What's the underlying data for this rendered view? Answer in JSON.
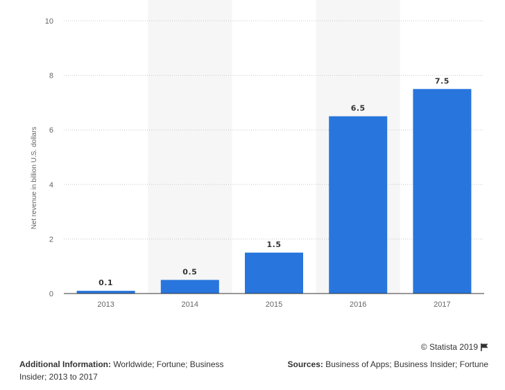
{
  "chart_data": {
    "type": "bar",
    "categories": [
      "2013",
      "2014",
      "2015",
      "2016",
      "2017"
    ],
    "values": [
      0.1,
      0.5,
      1.5,
      6.5,
      7.5
    ],
    "data_labels": [
      "0.1",
      "0.5",
      "1.5",
      "6.5",
      "7.5"
    ],
    "title": "",
    "xlabel": "",
    "ylabel": "Net revenue in billion U.S. dollars",
    "ylim": [
      0,
      10
    ],
    "yticks": [
      "0",
      "2",
      "4",
      "6",
      "8",
      "10"
    ],
    "grid": true,
    "bar_color": "#2876dd",
    "band_color": "#f6f6f6"
  },
  "footer": {
    "copyright": "© Statista 2019",
    "flag_icon": "flag-icon",
    "additional_label": "Additional Information:",
    "additional_text": " Worldwide; Fortune; Business Insider; 2013 to 2017",
    "sources_label": "Sources:",
    "sources_text": " Business of Apps; Business Insider; Fortune"
  }
}
